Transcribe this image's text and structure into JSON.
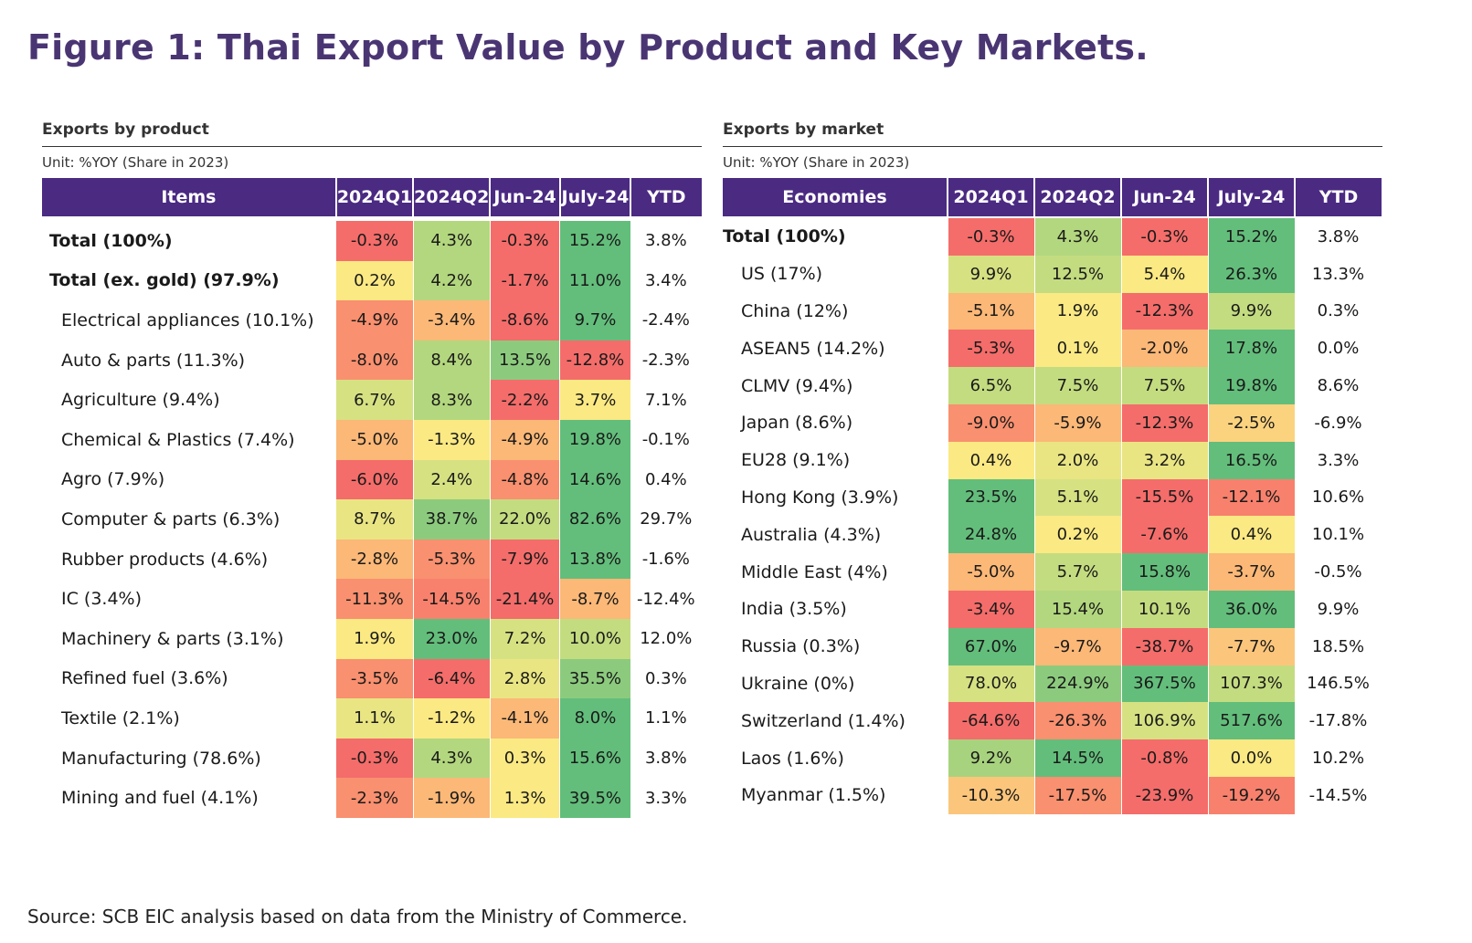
{
  "title": "Figure 1: Thai Export Value by Product and Key Markets.",
  "source": "Source: SCB EIC analysis based on data from the Ministry of Commerce.",
  "chart_data": [
    {
      "type": "table",
      "title": "Exports by product",
      "unit": "Unit: %YOY (Share in 2023)",
      "columns": [
        "Items",
        "2024Q1",
        "2024Q2",
        "Jun-24",
        "July-24",
        "YTD"
      ],
      "rows": [
        {
          "label": "Total (100%)",
          "bold": true,
          "indent": false,
          "values": [
            "-0.3%",
            "4.3%",
            "-0.3%",
            "15.2%",
            "3.8%"
          ],
          "colors": [
            "#f46d6a",
            "#b3d77e",
            "#f46d6a",
            "#63be7b"
          ]
        },
        {
          "label": "Total (ex. gold) (97.9%)",
          "bold": true,
          "indent": false,
          "values": [
            "0.2%",
            "4.2%",
            "-1.7%",
            "11.0%",
            "3.4%"
          ],
          "colors": [
            "#fbe983",
            "#b3d77e",
            "#f46d6a",
            "#63be7b"
          ]
        },
        {
          "label": "Electrical appliances (10.1%)",
          "bold": false,
          "indent": true,
          "values": [
            "-4.9%",
            "-3.4%",
            "-8.6%",
            "9.7%",
            "-2.4%"
          ],
          "colors": [
            "#f9906f",
            "#fbb877",
            "#f46d6a",
            "#63be7b"
          ]
        },
        {
          "label": "Auto & parts (11.3%)",
          "bold": false,
          "indent": true,
          "values": [
            "-8.0%",
            "8.4%",
            "13.5%",
            "-12.8%",
            "-2.3%"
          ],
          "colors": [
            "#f9906f",
            "#b3d77e",
            "#8ccb7e",
            "#f46d6a"
          ]
        },
        {
          "label": "Agriculture (9.4%)",
          "bold": false,
          "indent": true,
          "values": [
            "6.7%",
            "8.3%",
            "-2.2%",
            "3.7%",
            "7.1%"
          ],
          "colors": [
            "#d6e182",
            "#b3d77e",
            "#f46d6a",
            "#fbe983"
          ]
        },
        {
          "label": "Chemical & Plastics (7.4%)",
          "bold": false,
          "indent": true,
          "values": [
            "-5.0%",
            "-1.3%",
            "-4.9%",
            "19.8%",
            "-0.1%"
          ],
          "colors": [
            "#fbb877",
            "#fbe983",
            "#fbb877",
            "#63be7b"
          ]
        },
        {
          "label": "Agro (7.9%)",
          "bold": false,
          "indent": true,
          "values": [
            "-6.0%",
            "2.4%",
            "-4.8%",
            "14.6%",
            "0.4%"
          ],
          "colors": [
            "#f46d6a",
            "#d6e182",
            "#f9906f",
            "#63be7b"
          ]
        },
        {
          "label": "Computer & parts (6.3%)",
          "bold": false,
          "indent": true,
          "values": [
            "8.7%",
            "38.7%",
            "22.0%",
            "82.6%",
            "29.7%"
          ],
          "colors": [
            "#e9e583",
            "#8ccb7e",
            "#c4dc80",
            "#63be7b"
          ]
        },
        {
          "label": "Rubber products (4.6%)",
          "bold": false,
          "indent": true,
          "values": [
            "-2.8%",
            "-5.3%",
            "-7.9%",
            "13.8%",
            "-1.6%"
          ],
          "colors": [
            "#fbb877",
            "#f9906f",
            "#f46d6a",
            "#63be7b"
          ]
        },
        {
          "label": "IC (3.4%)",
          "bold": false,
          "indent": true,
          "values": [
            "-11.3%",
            "-14.5%",
            "-21.4%",
            "-8.7%",
            "-12.4%"
          ],
          "colors": [
            "#f9906f",
            "#f8816d",
            "#f46d6a",
            "#fbb877"
          ]
        },
        {
          "label": "Machinery & parts (3.1%)",
          "bold": false,
          "indent": true,
          "values": [
            "1.9%",
            "23.0%",
            "7.2%",
            "10.0%",
            "12.0%"
          ],
          "colors": [
            "#fbe983",
            "#63be7b",
            "#d6e182",
            "#c4dc80"
          ]
        },
        {
          "label": "Refined fuel (3.6%)",
          "bold": false,
          "indent": true,
          "values": [
            "-3.5%",
            "-6.4%",
            "2.8%",
            "35.5%",
            "0.3%"
          ],
          "colors": [
            "#f9906f",
            "#f46d6a",
            "#e9e583",
            "#8ccb7e"
          ]
        },
        {
          "label": "Textile (2.1%)",
          "bold": false,
          "indent": true,
          "values": [
            "1.1%",
            "-1.2%",
            "-4.1%",
            "8.0%",
            "1.1%"
          ],
          "colors": [
            "#e9e583",
            "#fbe983",
            "#fbb877",
            "#63be7b"
          ]
        },
        {
          "label": "Manufacturing (78.6%)",
          "bold": false,
          "indent": true,
          "values": [
            "-0.3%",
            "4.3%",
            "0.3%",
            "15.6%",
            "3.8%"
          ],
          "colors": [
            "#f46d6a",
            "#b3d77e",
            "#fbe983",
            "#63be7b"
          ]
        },
        {
          "label": "Mining and fuel (4.1%)",
          "bold": false,
          "indent": true,
          "values": [
            "-2.3%",
            "-1.9%",
            "1.3%",
            "39.5%",
            "3.3%"
          ],
          "colors": [
            "#f9906f",
            "#fbb877",
            "#fbe983",
            "#63be7b"
          ]
        }
      ]
    },
    {
      "type": "table",
      "title": "Exports by market",
      "unit": "Unit: %YOY (Share in 2023)",
      "columns": [
        "Economies",
        "2024Q1",
        "2024Q2",
        "Jun-24",
        "July-24",
        "YTD"
      ],
      "rows": [
        {
          "label": "Total (100%)",
          "bold": true,
          "indent": false,
          "values": [
            "-0.3%",
            "4.3%",
            "-0.3%",
            "15.2%",
            "3.8%"
          ],
          "colors": [
            "#f46d6a",
            "#b3d77e",
            "#f46d6a",
            "#63be7b"
          ]
        },
        {
          "label": "US (17%)",
          "bold": false,
          "indent": true,
          "values": [
            "9.9%",
            "12.5%",
            "5.4%",
            "26.3%",
            "13.3%"
          ],
          "colors": [
            "#d6e182",
            "#c4dc80",
            "#fbe983",
            "#63be7b"
          ]
        },
        {
          "label": "China (12%)",
          "bold": false,
          "indent": true,
          "values": [
            "-5.1%",
            "1.9%",
            "-12.3%",
            "9.9%",
            "0.3%"
          ],
          "colors": [
            "#fbb877",
            "#fbe983",
            "#f46d6a",
            "#c4dc80"
          ]
        },
        {
          "label": "ASEAN5 (14.2%)",
          "bold": false,
          "indent": true,
          "values": [
            "-5.3%",
            "0.1%",
            "-2.0%",
            "17.8%",
            "0.0%"
          ],
          "colors": [
            "#f46d6a",
            "#fbe983",
            "#fbb877",
            "#63be7b"
          ]
        },
        {
          "label": "CLMV (9.4%)",
          "bold": false,
          "indent": true,
          "values": [
            "6.5%",
            "7.5%",
            "7.5%",
            "19.8%",
            "8.6%"
          ],
          "colors": [
            "#c4dc80",
            "#c4dc80",
            "#c4dc80",
            "#63be7b"
          ]
        },
        {
          "label": "Japan (8.6%)",
          "bold": false,
          "indent": true,
          "values": [
            "-9.0%",
            "-5.9%",
            "-12.3%",
            "-2.5%",
            "-6.9%"
          ],
          "colors": [
            "#f9906f",
            "#fbb877",
            "#f46d6a",
            "#fbd37f"
          ]
        },
        {
          "label": "EU28 (9.1%)",
          "bold": false,
          "indent": true,
          "values": [
            "0.4%",
            "2.0%",
            "3.2%",
            "16.5%",
            "3.3%"
          ],
          "colors": [
            "#fbe983",
            "#e9e583",
            "#e9e583",
            "#63be7b"
          ]
        },
        {
          "label": "Hong Kong (3.9%)",
          "bold": false,
          "indent": true,
          "values": [
            "23.5%",
            "5.1%",
            "-15.5%",
            "-12.1%",
            "10.6%"
          ],
          "colors": [
            "#63be7b",
            "#d6e182",
            "#f46d6a",
            "#f8816d"
          ]
        },
        {
          "label": "Australia (4.3%)",
          "bold": false,
          "indent": true,
          "values": [
            "24.8%",
            "0.2%",
            "-7.6%",
            "0.4%",
            "10.1%"
          ],
          "colors": [
            "#63be7b",
            "#fbe983",
            "#f46d6a",
            "#fbe983"
          ]
        },
        {
          "label": "Middle East (4%)",
          "bold": false,
          "indent": true,
          "values": [
            "-5.0%",
            "5.7%",
            "15.8%",
            "-3.7%",
            "-0.5%"
          ],
          "colors": [
            "#fbb877",
            "#c4dc80",
            "#63be7b",
            "#fbb877"
          ]
        },
        {
          "label": "India (3.5%)",
          "bold": false,
          "indent": true,
          "values": [
            "-3.4%",
            "15.4%",
            "10.1%",
            "36.0%",
            "9.9%"
          ],
          "colors": [
            "#f46d6a",
            "#b3d77e",
            "#c4dc80",
            "#63be7b"
          ]
        },
        {
          "label": "Russia (0.3%)",
          "bold": false,
          "indent": true,
          "values": [
            "67.0%",
            "-9.7%",
            "-38.7%",
            "-7.7%",
            "18.5%"
          ],
          "colors": [
            "#63be7b",
            "#fbb877",
            "#f46d6a",
            "#fbc67b"
          ]
        },
        {
          "label": "Ukraine (0%)",
          "bold": false,
          "indent": true,
          "values": [
            "78.0%",
            "224.9%",
            "367.5%",
            "107.3%",
            "146.5%"
          ],
          "colors": [
            "#d6e182",
            "#8ccb7e",
            "#63be7b",
            "#c4dc80"
          ]
        },
        {
          "label": "Switzerland (1.4%)",
          "bold": false,
          "indent": true,
          "values": [
            "-64.6%",
            "-26.3%",
            "106.9%",
            "517.6%",
            "-17.8%"
          ],
          "colors": [
            "#f46d6a",
            "#f9906f",
            "#d6e182",
            "#63be7b"
          ]
        },
        {
          "label": "Laos (1.6%)",
          "bold": false,
          "indent": true,
          "values": [
            "9.2%",
            "14.5%",
            "-0.8%",
            "0.0%",
            "10.2%"
          ],
          "colors": [
            "#a8d37e",
            "#63be7b",
            "#f46d6a",
            "#fbe983"
          ]
        },
        {
          "label": "Myanmar (1.5%)",
          "bold": false,
          "indent": true,
          "values": [
            "-10.3%",
            "-17.5%",
            "-23.9%",
            "-19.2%",
            "-14.5%"
          ],
          "colors": [
            "#fbc67b",
            "#f9906f",
            "#f46d6a",
            "#f8816d"
          ]
        }
      ]
    }
  ]
}
